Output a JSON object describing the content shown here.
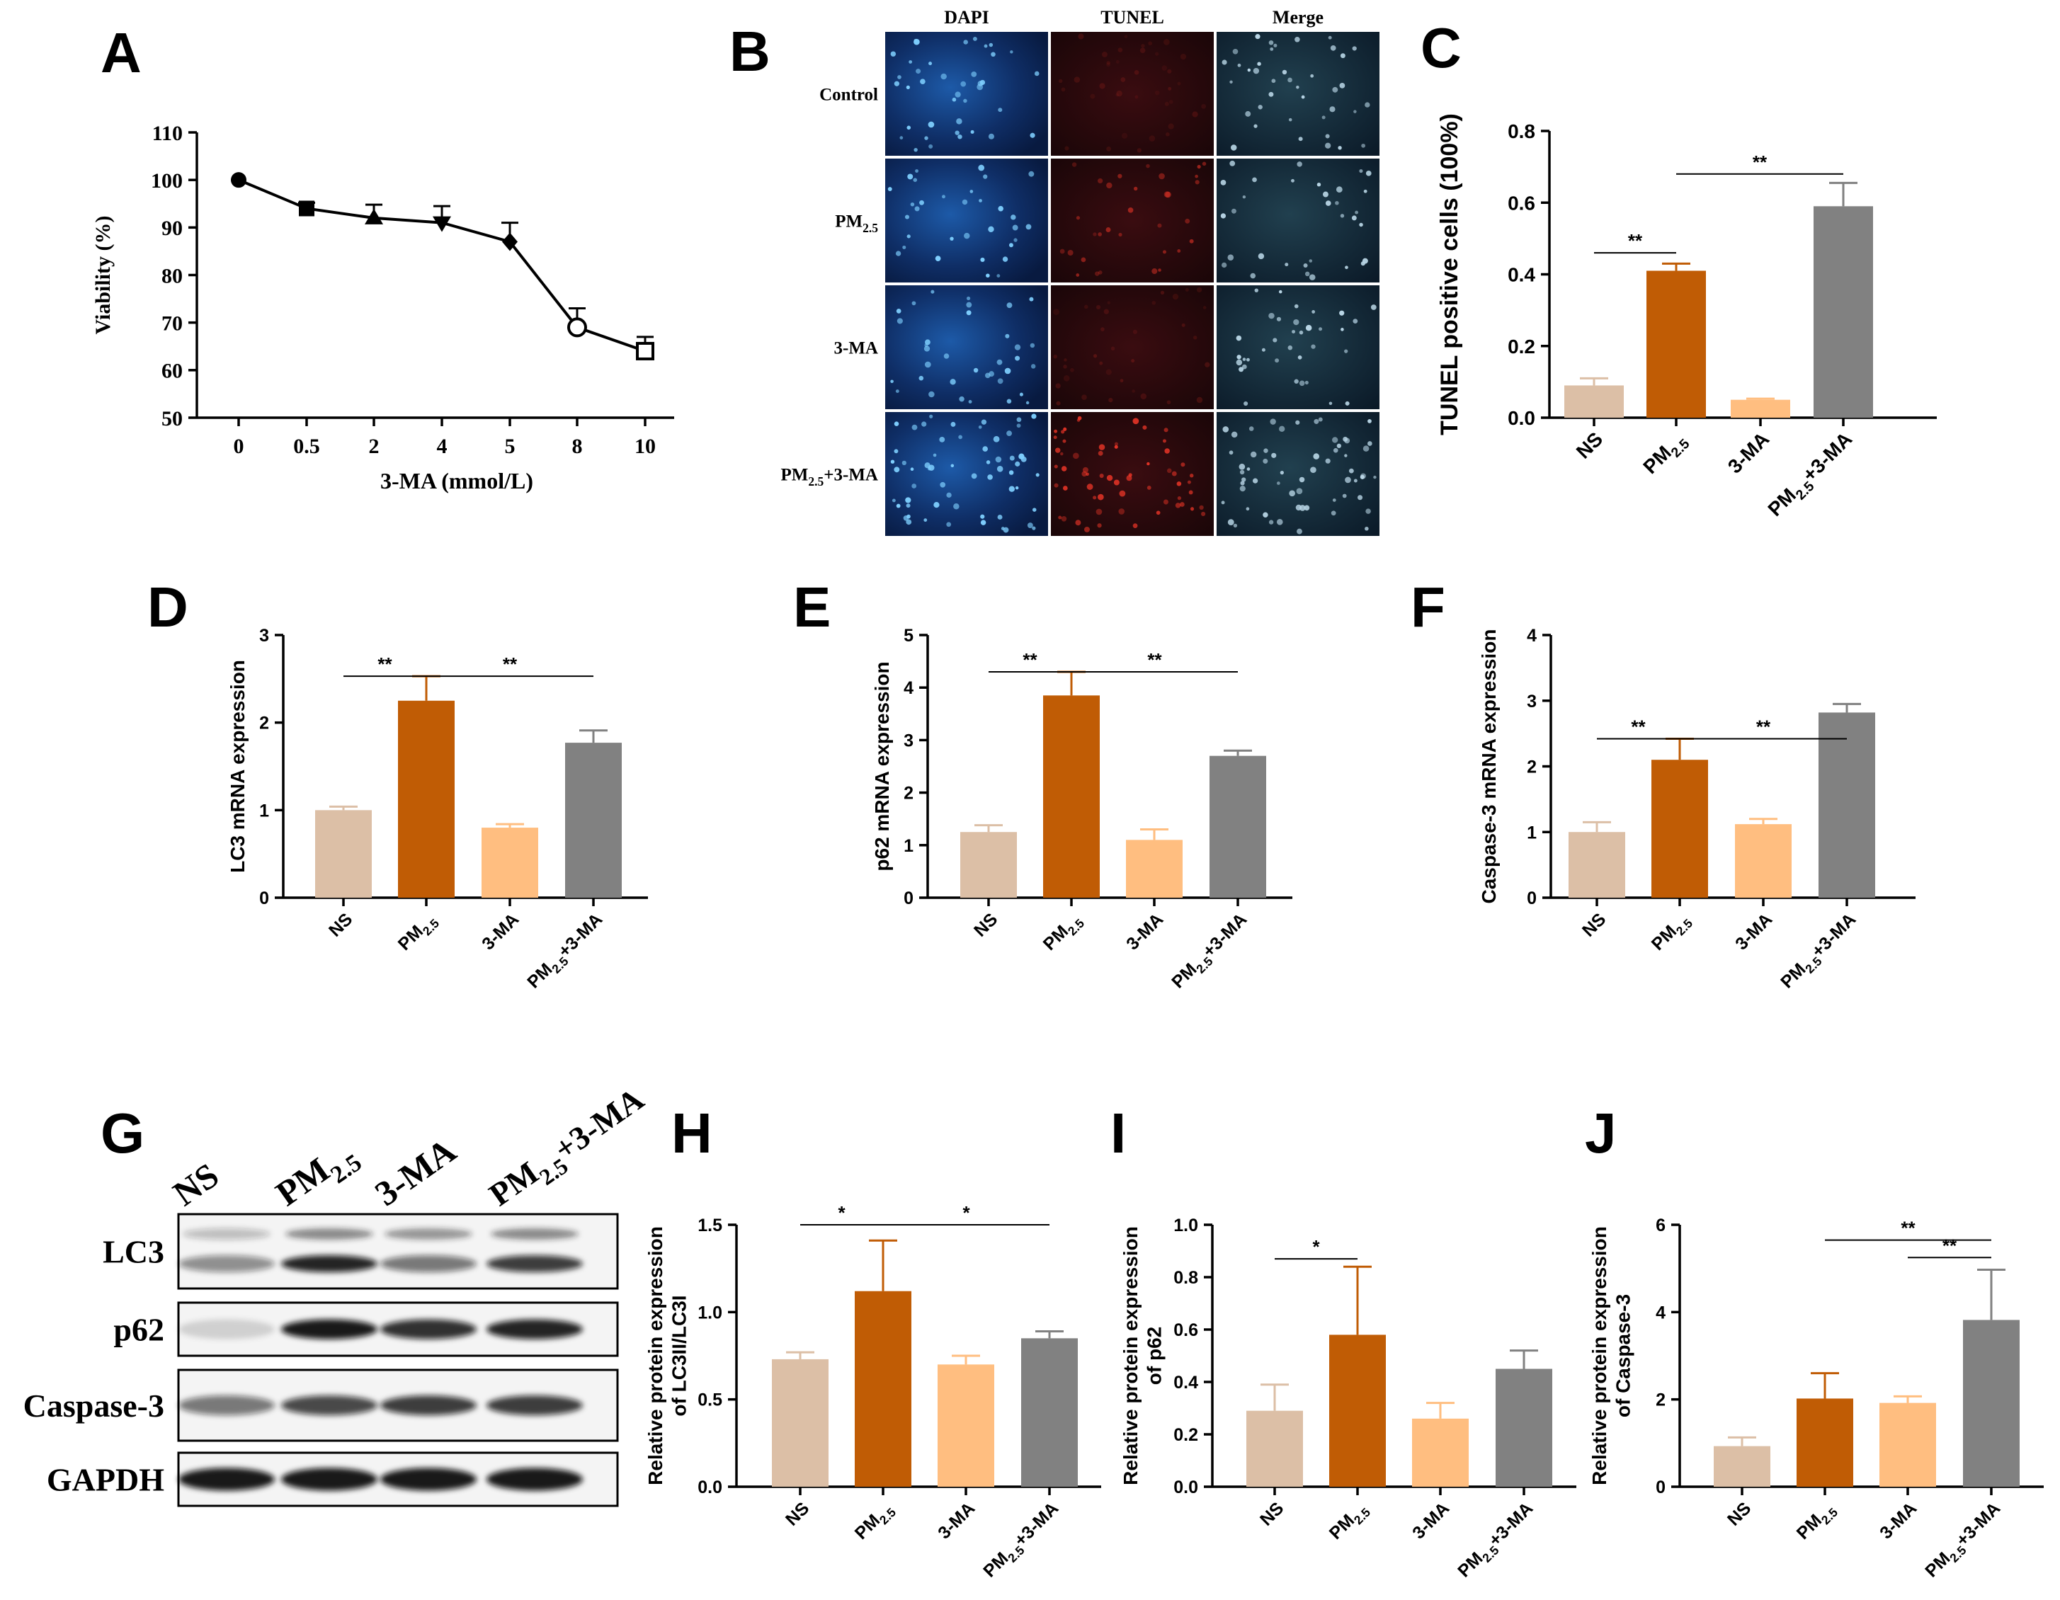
{
  "figure_title": "Multi-panel figure: 3-MA, PM2.5 autophagy and apoptosis",
  "colors": {
    "NS": "#dcbfa6",
    "PM25": "#c05c05",
    "MA": "#ffbe80",
    "PM25MA": "#818181",
    "axis": "#000000"
  },
  "chart_data": [
    {
      "id": "A",
      "panel_label": "A",
      "type": "line",
      "categories": [
        "0",
        "0.5",
        "2",
        "4",
        "5",
        "8",
        "10"
      ],
      "values": [
        100,
        94,
        92,
        91,
        87,
        69,
        64
      ],
      "errors": [
        0,
        1.2,
        2.8,
        3.5,
        4,
        4,
        3
      ],
      "markers": [
        "circle",
        "square",
        "triangle-up",
        "triangle-down",
        "diamond",
        "open-circle",
        "open-square"
      ],
      "xlabel": "3-MA (mmol/L)",
      "ylabel": "Viability (%)",
      "ylim": [
        50,
        110
      ],
      "yticks": [
        "50",
        "60",
        "70",
        "80",
        "90",
        "100",
        "110"
      ]
    },
    {
      "id": "C",
      "panel_label": "C",
      "type": "bar",
      "categories": [
        "NS",
        "PM2.5",
        "3-MA",
        "PM2.5+3-MA"
      ],
      "values": [
        0.09,
        0.41,
        0.05,
        0.59
      ],
      "errors": [
        0.02,
        0.02,
        0.003,
        0.065
      ],
      "ylabel": "TUNEL positive cells (100%)",
      "ylim": [
        0,
        0.8
      ],
      "yticks": [
        "0.0",
        "0.2",
        "0.4",
        "0.6",
        "0.8"
      ],
      "significance": [
        {
          "from": 0,
          "to": 1,
          "label": "**"
        },
        {
          "from": 1,
          "to": 3,
          "label": "**"
        }
      ]
    },
    {
      "id": "D",
      "panel_label": "D",
      "type": "bar",
      "categories": [
        "NS",
        "PM2.5",
        "3-MA",
        "PM2.5+3-MA"
      ],
      "values": [
        1.0,
        2.25,
        0.8,
        1.77
      ],
      "errors": [
        0.04,
        0.28,
        0.04,
        0.14
      ],
      "ylabel": "LC3 mRNA expression",
      "ylim": [
        0,
        3
      ],
      "yticks": [
        "0",
        "1",
        "2",
        "3"
      ],
      "significance": [
        {
          "from": 0,
          "to": 1,
          "label": "**"
        },
        {
          "from": 1,
          "to": 3,
          "label": "**"
        }
      ]
    },
    {
      "id": "E",
      "panel_label": "E",
      "type": "bar",
      "categories": [
        "NS",
        "PM2.5",
        "3-MA",
        "PM2.5+3-MA"
      ],
      "values": [
        1.25,
        3.85,
        1.1,
        2.7
      ],
      "errors": [
        0.13,
        0.45,
        0.2,
        0.1
      ],
      "ylabel": "p62 mRNA expression",
      "ylim": [
        0,
        5
      ],
      "yticks": [
        "0",
        "1",
        "2",
        "3",
        "4",
        "5"
      ],
      "significance": [
        {
          "from": 0,
          "to": 1,
          "label": "**"
        },
        {
          "from": 1,
          "to": 3,
          "label": "**"
        }
      ]
    },
    {
      "id": "F",
      "panel_label": "F",
      "type": "bar",
      "categories": [
        "NS",
        "PM2.5",
        "3-MA",
        "PM2.5+3-MA"
      ],
      "values": [
        1.0,
        2.1,
        1.12,
        2.82
      ],
      "errors": [
        0.15,
        0.32,
        0.08,
        0.13
      ],
      "ylabel": "Caspase-3 mRNA expression",
      "ylim": [
        0,
        4
      ],
      "yticks": [
        "0",
        "1",
        "2",
        "3",
        "4"
      ],
      "significance": [
        {
          "from": 0,
          "to": 1,
          "label": "**"
        },
        {
          "from": 1,
          "to": 3,
          "label": "**"
        }
      ]
    },
    {
      "id": "H",
      "panel_label": "H",
      "type": "bar",
      "categories": [
        "NS",
        "PM2.5",
        "3-MA",
        "PM2.5+3-MA"
      ],
      "values": [
        0.73,
        1.12,
        0.7,
        0.85
      ],
      "errors": [
        0.04,
        0.29,
        0.05,
        0.04
      ],
      "ylabel": "Relative protein expression of LC3II/LC3I",
      "ylabel_lines": [
        "Relative protein expression",
        "of LC3II/LC3I"
      ],
      "ylim": [
        0,
        1.5
      ],
      "yticks": [
        "0.0",
        "0.5",
        "1.0",
        "1.5"
      ],
      "significance": [
        {
          "from": 0,
          "to": 1,
          "label": "*"
        },
        {
          "from": 1,
          "to": 3,
          "label": "*"
        }
      ]
    },
    {
      "id": "I",
      "panel_label": "I",
      "type": "bar",
      "categories": [
        "NS",
        "PM2.5",
        "3-MA",
        "PM2.5+3-MA"
      ],
      "values": [
        0.29,
        0.58,
        0.26,
        0.45
      ],
      "errors": [
        0.1,
        0.26,
        0.06,
        0.07
      ],
      "ylabel": "Relative protein expression of p62",
      "ylabel_lines": [
        "Relative protein expression",
        "of p62"
      ],
      "ylim": [
        0,
        1.0
      ],
      "yticks": [
        "0.0",
        "0.2",
        "0.4",
        "0.6",
        "0.8",
        "1.0"
      ],
      "significance": [
        {
          "from": 0,
          "to": 1,
          "label": "*"
        }
      ]
    },
    {
      "id": "J",
      "panel_label": "J",
      "type": "bar",
      "categories": [
        "NS",
        "PM2.5",
        "3-MA",
        "PM2.5+3-MA"
      ],
      "values": [
        0.93,
        2.02,
        1.92,
        3.82
      ],
      "errors": [
        0.2,
        0.58,
        0.15,
        1.15
      ],
      "ylabel": "Relative protein expression of Caspase-3",
      "ylabel_lines": [
        "Relative protein expression",
        "of Caspase-3"
      ],
      "ylim": [
        0,
        6
      ],
      "yticks": [
        "0",
        "2",
        "4",
        "6"
      ],
      "significance": [
        {
          "from": 1,
          "to": 3,
          "label": "**"
        },
        {
          "from": 2,
          "to": 3,
          "label": "**"
        }
      ]
    }
  ],
  "tunel_panel": {
    "panel_label": "B",
    "columns": [
      "DAPI",
      "TUNEL",
      "Merge"
    ],
    "rows": [
      "Control",
      "PM2.5",
      "3-MA",
      "PM2.5+3-MA"
    ]
  },
  "western_blot": {
    "panel_label": "G",
    "lanes": [
      "NS",
      "PM2.5",
      "3-MA",
      "PM2.5+3-MA"
    ],
    "proteins": [
      "LC3",
      "p62",
      "Caspase-3",
      "GAPDH"
    ]
  }
}
